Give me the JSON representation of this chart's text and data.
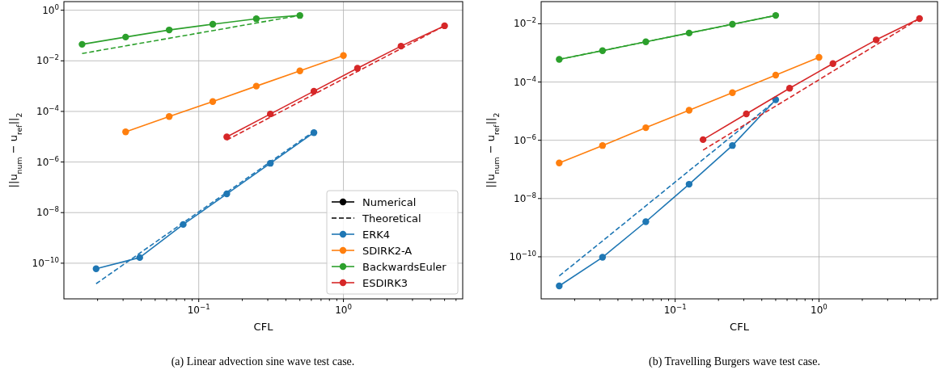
{
  "chart_data": [
    {
      "type": "line",
      "xlabel": "CFL",
      "ylabel": "||u$_{num}$ − u$_{ref}$||$_{2}$",
      "log": "xy",
      "grid": true,
      "legend": "bottom right",
      "marker": "circle",
      "xlim": [
        0.0117,
        6.67
      ],
      "xticks": [
        {
          "value": 0.02,
          "label": null
        },
        {
          "value": 0.03,
          "label": null
        },
        {
          "value": 0.04,
          "label": null
        },
        {
          "value": 0.05,
          "label": null
        },
        {
          "value": 0.06,
          "label": null
        },
        {
          "value": 0.07,
          "label": null
        },
        {
          "value": 0.08,
          "label": null
        },
        {
          "value": 0.09,
          "label": null
        },
        {
          "value": 0.1,
          "label": "10$^{−1}$"
        },
        {
          "value": 0.2,
          "label": null
        },
        {
          "value": 0.3,
          "label": null
        },
        {
          "value": 0.4,
          "label": null
        },
        {
          "value": 0.5,
          "label": null
        },
        {
          "value": 0.6,
          "label": null
        },
        {
          "value": 0.7,
          "label": null
        },
        {
          "value": 0.8,
          "label": null
        },
        {
          "value": 0.9,
          "label": null
        },
        {
          "value": 1,
          "label": "10$^{0}$"
        },
        {
          "value": 2,
          "label": null
        },
        {
          "value": 3,
          "label": null
        },
        {
          "value": 4,
          "label": null
        },
        {
          "value": 5,
          "label": null
        },
        {
          "value": 6,
          "label": null
        }
      ],
      "ylim": [
        3.9e-12,
        2.19
      ],
      "yticks": [
        {
          "value": 1e-10,
          "label": "10$^{−10}$"
        },
        {
          "value": 1e-08,
          "label": "10$^{−8}$"
        },
        {
          "value": 1e-06,
          "label": "10$^{−6}$"
        },
        {
          "value": 0.0001,
          "label": "10$^{−4}$"
        },
        {
          "value": 0.01,
          "label": "10$^{−2}$"
        },
        {
          "value": 1,
          "label": "10$^{0}$"
        }
      ],
      "annotations": [
        "(a) Linear advection sine wave test case."
      ],
      "series": [
        {
          "name": "Numerical",
          "color": "#000000"
        },
        {
          "name": "Theoretical",
          "color": "#000000",
          "line_style": "dashed",
          "marker": "none"
        },
        {
          "name": "ERK4",
          "color": "#1f77b4",
          "x": [
            0.01953,
            0.0391,
            0.0781,
            0.1563,
            0.3125,
            0.625
          ],
          "values": [
            6e-11,
            1.67e-10,
            3.4e-09,
            5.5e-08,
            8.9e-07,
            1.45e-05
          ]
        },
        {
          "name": "SDIRK2-A",
          "color": "#ff7f0e",
          "x": [
            0.03125,
            0.0625,
            0.125,
            0.25,
            0.5,
            1
          ],
          "values": [
            1.55e-05,
            6.3e-05,
            0.000245,
            0.001,
            0.004,
            0.0162
          ]
        },
        {
          "name": "BackwardsEuler",
          "color": "#2ca02c",
          "x": [
            0.015625,
            0.03125,
            0.0625,
            0.125,
            0.25,
            0.5
          ],
          "values": [
            0.045,
            0.087,
            0.166,
            0.28,
            0.46,
            0.62
          ]
        },
        {
          "name": "ESDIRK3",
          "color": "#d62728",
          "x": [
            0.15625,
            0.3125,
            0.625,
            1.25,
            2.5,
            5
          ],
          "values": [
            9.8e-06,
            7.9e-05,
            0.00063,
            0.0051,
            0.038,
            0.243
          ]
        },
        {
          "color": "#1f77b4",
          "line_style": "dashed",
          "marker": "none",
          "x": [
            0.01953,
            0.0391,
            0.0781,
            0.1563,
            0.3125,
            0.625
          ],
          "values": [
            1.55e-11,
            2.48e-10,
            3.97e-09,
            6.35e-08,
            1.02e-06,
            1.63e-05
          ]
        },
        {
          "color": "#2ca02c",
          "line_style": "dashed",
          "marker": "none",
          "x": [
            0.015625,
            0.03125,
            0.0625,
            0.125,
            0.25,
            0.5
          ],
          "values": [
            0.0195,
            0.039,
            0.078,
            0.156,
            0.3125,
            0.625
          ]
        },
        {
          "color": "#d62728",
          "line_style": "dashed",
          "marker": "none",
          "x": [
            0.15625,
            0.3125,
            0.625,
            1.25,
            2.5,
            5
          ],
          "values": [
            7.4e-06,
            5.9e-05,
            0.000475,
            0.0038,
            0.0304,
            0.243
          ]
        }
      ]
    },
    {
      "type": "line",
      "xlabel": "CFL",
      "ylabel": "||u$_{num}$ − u$_{ref}$||$_{2}$",
      "log": "xy",
      "grid": true,
      "marker": "circle",
      "xlim": [
        0.0117,
        6.67
      ],
      "xticks": [
        {
          "value": 0.02,
          "label": null
        },
        {
          "value": 0.03,
          "label": null
        },
        {
          "value": 0.04,
          "label": null
        },
        {
          "value": 0.05,
          "label": null
        },
        {
          "value": 0.06,
          "label": null
        },
        {
          "value": 0.07,
          "label": null
        },
        {
          "value": 0.08,
          "label": null
        },
        {
          "value": 0.09,
          "label": null
        },
        {
          "value": 0.1,
          "label": "10$^{−1}$"
        },
        {
          "value": 0.2,
          "label": null
        },
        {
          "value": 0.3,
          "label": null
        },
        {
          "value": 0.4,
          "label": null
        },
        {
          "value": 0.5,
          "label": null
        },
        {
          "value": 0.6,
          "label": null
        },
        {
          "value": 0.7,
          "label": null
        },
        {
          "value": 0.8,
          "label": null
        },
        {
          "value": 0.9,
          "label": null
        },
        {
          "value": 1,
          "label": "10$^{0}$"
        },
        {
          "value": 2,
          "label": null
        },
        {
          "value": 3,
          "label": null
        },
        {
          "value": 4,
          "label": null
        },
        {
          "value": 5,
          "label": null
        },
        {
          "value": 6,
          "label": null
        }
      ],
      "ylim": [
        3.6e-12,
        0.0575
      ],
      "yticks": [
        {
          "value": 1e-10,
          "label": "10$^{−10}$"
        },
        {
          "value": 1e-08,
          "label": "10$^{−8}$"
        },
        {
          "value": 1e-06,
          "label": "10$^{−6}$"
        },
        {
          "value": 0.0001,
          "label": "10$^{−4}$"
        },
        {
          "value": 0.01,
          "label": "10$^{−2}$"
        }
      ],
      "annotations": [
        "(b) Travelling Burgers wave test case."
      ],
      "series": [
        {
          "color": "#1f77b4",
          "x": [
            0.015625,
            0.03125,
            0.0625,
            0.125,
            0.25,
            0.5
          ],
          "values": [
            1e-11,
            9.6e-11,
            1.6e-09,
            3.1e-08,
            6.6e-07,
            2.45e-05
          ]
        },
        {
          "color": "#ff7f0e",
          "x": [
            0.015625,
            0.03125,
            0.0625,
            0.125,
            0.25,
            0.5,
            1
          ],
          "values": [
            1.66e-07,
            6.6e-07,
            2.7e-06,
            1.07e-05,
            4.3e-05,
            0.000173,
            0.0007
          ]
        },
        {
          "color": "#2ca02c",
          "x": [
            0.015625,
            0.03125,
            0.0625,
            0.125,
            0.25,
            0.5
          ],
          "values": [
            0.0006,
            0.00119,
            0.0024,
            0.0048,
            0.0096,
            0.0193
          ]
        },
        {
          "color": "#d62728",
          "x": [
            0.15625,
            0.3125,
            0.625,
            1.25,
            2.5,
            5
          ],
          "values": [
            1.05e-06,
            8.05e-06,
            6.1e-05,
            0.00043,
            0.0028,
            0.015
          ]
        },
        {
          "color": "#1f77b4",
          "line_style": "dashed",
          "marker": "none",
          "x": [
            0.015625,
            0.03125,
            0.0625,
            0.125,
            0.25,
            0.5
          ],
          "values": [
            2.2e-11,
            3.5e-10,
            5.6e-09,
            9e-08,
            1.44e-06,
            2.3e-05
          ]
        },
        {
          "color": "#2ca02c",
          "line_style": "dashed",
          "marker": "none",
          "x": [
            0.015625,
            0.03125,
            0.0625,
            0.125,
            0.25,
            0.5
          ],
          "values": [
            0.0006,
            0.0012,
            0.0024,
            0.0048,
            0.0096,
            0.0192
          ]
        },
        {
          "color": "#d62728",
          "line_style": "dashed",
          "marker": "none",
          "x": [
            0.15625,
            0.3125,
            0.625,
            1.25,
            2.5,
            5
          ],
          "values": [
            4.6e-07,
            3.7e-06,
            2.9e-05,
            0.000235,
            0.00188,
            0.015
          ]
        }
      ]
    }
  ]
}
